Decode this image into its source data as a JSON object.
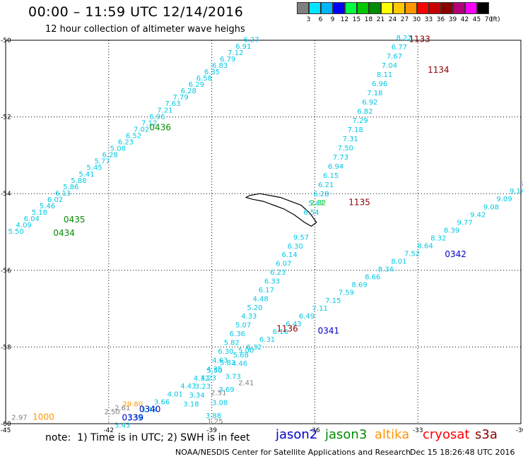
{
  "header": {
    "title": "00:00 – 11:59 UTC 12/14/2016",
    "subtitle": "12 hour collection of altimeter wave heighs"
  },
  "color_scale": {
    "unit": "(ft)",
    "bins": [
      {
        "label": "3",
        "color": "#7f7f7f"
      },
      {
        "label": "6",
        "color": "#00e5ff"
      },
      {
        "label": "9",
        "color": "#00b4ff"
      },
      {
        "label": "12",
        "color": "#0000ff"
      },
      {
        "label": "15",
        "color": "#00ff44"
      },
      {
        "label": "18",
        "color": "#00c800"
      },
      {
        "label": "21",
        "color": "#008c00"
      },
      {
        "label": "24",
        "color": "#ffff00"
      },
      {
        "label": "27",
        "color": "#ffc800"
      },
      {
        "label": "30",
        "color": "#ff9600"
      },
      {
        "label": "33",
        "color": "#ff0000"
      },
      {
        "label": "36",
        "color": "#c80000"
      },
      {
        "label": "39",
        "color": "#8b0000"
      },
      {
        "label": "42",
        "color": "#b40078"
      },
      {
        "label": "45",
        "color": "#ff00ff"
      },
      {
        "label": "70",
        "color": "#000000"
      }
    ]
  },
  "map": {
    "lat_ticks": [
      "-50",
      "-52",
      "-54",
      "-56",
      "-58",
      "-60"
    ],
    "lon_ticks": [
      "-45",
      "-42",
      "-39",
      "-36",
      "-33",
      "-30"
    ],
    "lon_range": [
      -45,
      -30
    ],
    "lat_range": [
      -60,
      -50
    ],
    "track_color_cyan": "#00c8e6",
    "track_color_blue": "#0000c8",
    "pass_labels": [
      {
        "text": "1133",
        "color": "#8b0000",
        "lon": -32.95,
        "lat": -50.05
      },
      {
        "text": "1134",
        "color": "#8b0000",
        "lon": -32.4,
        "lat": -50.85
      },
      {
        "text": "1135",
        "color": "#8b0000",
        "lon": -34.7,
        "lat": -54.3
      },
      {
        "text": "1136",
        "color": "#8b0000",
        "lon": -36.8,
        "lat": -57.6
      },
      {
        "text": "0436",
        "color": "#008c00",
        "lon": -40.5,
        "lat": -52.35
      },
      {
        "text": "0435",
        "color": "#008c00",
        "lon": -43.0,
        "lat": -54.75
      },
      {
        "text": "0434",
        "color": "#008c00",
        "lon": -43.3,
        "lat": -55.1
      },
      {
        "text": "0342",
        "color": "#0000c8",
        "lon": -31.9,
        "lat": -55.65
      },
      {
        "text": "0341",
        "color": "#0000c8",
        "lon": -35.6,
        "lat": -57.65
      },
      {
        "text": "0340",
        "color": "#0000c8",
        "lon": -40.8,
        "lat": -59.7
      },
      {
        "text": "0339",
        "color": "#0000c8",
        "lon": -41.3,
        "lat": -59.92
      },
      {
        "text": "1000",
        "color": "#ff9600",
        "lon": -43.9,
        "lat": -59.9
      }
    ],
    "tracks": [
      {
        "name": "jason3 pass 0436",
        "color": "#00c8e6",
        "lon_start": -44.7,
        "lat_start": -55.05,
        "lon_end": -37.85,
        "lat_end": -50.05,
        "values": [
          "5.50",
          "4.09",
          "6.04",
          "5.18",
          "5.46",
          "6.02",
          "6.13",
          "5.86",
          "5.88",
          "5.41",
          "5.45",
          "5.77",
          "6.28",
          "5.08",
          "6.23",
          "6.52",
          "7.02",
          "7.12",
          "6.96",
          "7.21",
          "7.63",
          "7.79",
          "6.28",
          "6.29",
          "6.58",
          "6.35",
          "6.83",
          "6.79",
          "7.12",
          "6.91",
          "6.27"
        ]
      },
      {
        "name": "s3a pass 1134",
        "color": "#00c8e6",
        "lon_start": -36.1,
        "lat_start": -54.55,
        "lon_end": -33.4,
        "lat_end": -50.0,
        "values": [
          "6.54",
          "5.47",
          "6.28",
          "6.21",
          "6.15",
          "6.94",
          "7.73",
          "7.50",
          "7.31",
          "7.18",
          "7.29",
          "6.82",
          "6.92",
          "7.18",
          "6.96",
          "8.11",
          "7.04",
          "7.67",
          "6.77",
          "8.22"
        ]
      },
      {
        "name": "s3a pass 1136",
        "color": "#00c8e6",
        "lon_start": -39.6,
        "lat_start": -59.55,
        "lon_end": -36.4,
        "lat_end": -55.2,
        "values": [
          "3.18",
          "3.34",
          "3.23",
          "4.23",
          "4.35",
          "4.63",
          "6.30",
          "5.82",
          "6.36",
          "5.07",
          "4.33",
          "5.20",
          "4.48",
          "6.17",
          "6.33",
          "6.23",
          "6.07",
          "6.14",
          "6.30",
          "9.57"
        ]
      },
      {
        "name": "s3a pass 1136 south",
        "color": "#00c8e6",
        "lon_start": -38.95,
        "lat_start": -59.85,
        "lon_end": -38.0,
        "lat_end": -58.15,
        "values": [
          "3.88",
          "3.08",
          "3.69",
          "3.73",
          "4.46",
          "5.00"
        ]
      },
      {
        "name": "jason2 pass 0341",
        "color": "#00c8e6",
        "lon_start": -41.6,
        "lat_start": -60.1,
        "lon_end": -30.1,
        "lat_end": -54.0,
        "values": [
          "3.43",
          "3.58",
          "3.43",
          "3.66",
          "4.01",
          "4.43",
          "4.32",
          "5.50",
          "5.83",
          "5.68",
          "6.32",
          "6.31",
          "6.16",
          "6.43",
          "6.49",
          "7.11",
          "7.15",
          "7.59",
          "8.69",
          "8.66",
          "8.34",
          "8.01",
          "7.52",
          "8.64",
          "8.32",
          "8.39",
          "9.77",
          "9.42",
          "9.08",
          "9.09",
          "9.14"
        ]
      }
    ],
    "grey_values": [
      {
        "text": "2.97",
        "lon": -44.6,
        "lat": -59.9
      },
      {
        "text": "2.61",
        "lon": -41.6,
        "lat": -59.65
      },
      {
        "text": "2.50",
        "lon": -41.9,
        "lat": -59.75
      },
      {
        "text": "2.51",
        "lon": -38.8,
        "lat": -59.25
      },
      {
        "text": "2.41",
        "lon": -38.0,
        "lat": -59.0
      },
      {
        "text": "1.25",
        "lon": -38.9,
        "lat": -60.0
      },
      {
        "text": "29.80",
        "lon": -41.3,
        "lat": -59.55
      }
    ],
    "extra_values": [
      {
        "text": "2.32",
        "lon": -35.9,
        "lat": -54.3,
        "color": "#00c800"
      },
      {
        "text": "8",
        "lon": -29.9,
        "lat": -53.8,
        "color": "#0000c8"
      }
    ]
  },
  "footer": {
    "note": "note:  1) Time is in UTC; 2) SWH is in feet",
    "satellites": [
      {
        "label": "jason2",
        "color": "#0000c8"
      },
      {
        "label": "jason3",
        "color": "#008c00"
      },
      {
        "label": "altika",
        "color": "#ff9600"
      },
      {
        "label": "cryosat",
        "color": "#ff0000"
      },
      {
        "label": "s3a",
        "color": "#8b0000"
      }
    ],
    "credit": "NOAA/NESDIS Center for Satellite Applications and Research",
    "generated": "Dec 15 18:26:48 UTC 2016"
  }
}
